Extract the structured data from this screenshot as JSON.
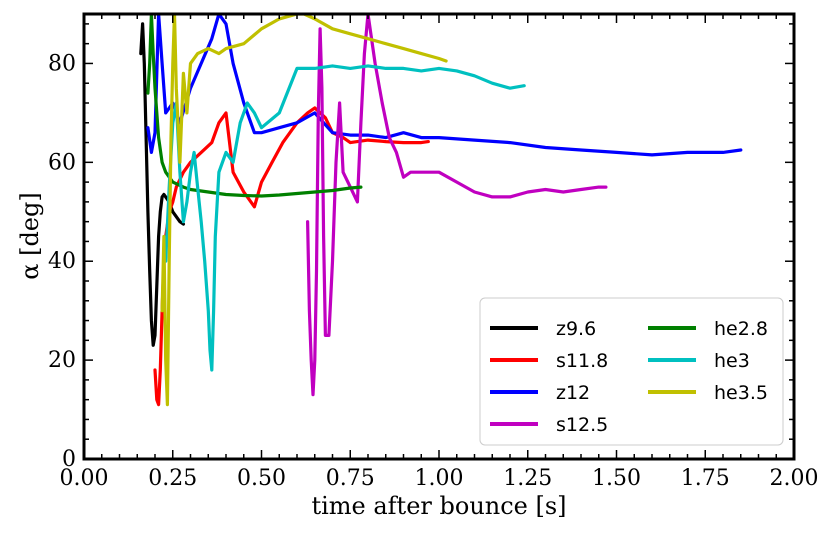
{
  "chart_data": {
    "type": "line",
    "title": "",
    "xlabel": "time after bounce [s]",
    "ylabel": "α [deg]",
    "xlim": [
      0,
      2.0
    ],
    "ylim": [
      0,
      90
    ],
    "x_ticks": [
      0,
      0.25,
      0.5,
      0.75,
      1.0,
      1.25,
      1.5,
      1.75,
      2.0
    ],
    "x_tick_labels": [
      "0.00",
      "0.25",
      "0.50",
      "0.75",
      "1.00",
      "1.25",
      "1.50",
      "1.75",
      "2.00"
    ],
    "y_ticks": [
      0,
      20,
      40,
      60,
      80
    ],
    "y_tick_labels": [
      "0",
      "20",
      "40",
      "60",
      "80"
    ],
    "legend_position": "lower-right",
    "series": [
      {
        "name": "z9.6",
        "color": "#000000",
        "x": [
          0.16,
          0.165,
          0.17,
          0.175,
          0.18,
          0.185,
          0.19,
          0.195,
          0.2,
          0.205,
          0.21,
          0.215,
          0.22,
          0.225,
          0.23,
          0.24,
          0.25,
          0.26,
          0.27,
          0.28
        ],
        "y": [
          82,
          88,
          80,
          65,
          50,
          38,
          28,
          23,
          25,
          35,
          45,
          50,
          53,
          53.5,
          53,
          52,
          50,
          49,
          48,
          47.5
        ]
      },
      {
        "name": "s11.8",
        "color": "#ff0000",
        "x": [
          0.2,
          0.205,
          0.21,
          0.215,
          0.22,
          0.225,
          0.23,
          0.24,
          0.25,
          0.26,
          0.28,
          0.3,
          0.33,
          0.36,
          0.38,
          0.4,
          0.42,
          0.45,
          0.48,
          0.5,
          0.53,
          0.56,
          0.6,
          0.63,
          0.65,
          0.68,
          0.7,
          0.73,
          0.75,
          0.8,
          0.85,
          0.9,
          0.95,
          0.97
        ],
        "y": [
          18,
          12,
          11,
          18,
          30,
          40,
          45,
          50,
          52,
          55,
          58,
          60,
          62,
          64,
          68,
          70,
          58,
          54,
          51,
          56,
          60,
          64,
          68,
          70,
          71,
          69,
          66,
          65,
          64,
          64.5,
          64.2,
          64,
          64,
          64.2
        ]
      },
      {
        "name": "z12",
        "color": "#0000ff",
        "x": [
          0.18,
          0.19,
          0.2,
          0.21,
          0.22,
          0.23,
          0.25,
          0.27,
          0.3,
          0.33,
          0.36,
          0.38,
          0.4,
          0.42,
          0.45,
          0.48,
          0.5,
          0.55,
          0.6,
          0.65,
          0.7,
          0.75,
          0.8,
          0.85,
          0.9,
          0.95,
          1.0,
          1.1,
          1.2,
          1.3,
          1.4,
          1.5,
          1.6,
          1.7,
          1.8,
          1.85
        ],
        "y": [
          67,
          62,
          66,
          90,
          80,
          70,
          72,
          68,
          75,
          80,
          85,
          90,
          88,
          80,
          72,
          66,
          66,
          67,
          68,
          70,
          66,
          65.5,
          65.5,
          65,
          66,
          65,
          65,
          64.5,
          64,
          63,
          62.5,
          62,
          61.5,
          62,
          62,
          62.5
        ]
      },
      {
        "name": "s12.5",
        "color": "#c000c0",
        "x": [
          0.63,
          0.635,
          0.64,
          0.645,
          0.65,
          0.655,
          0.66,
          0.665,
          0.67,
          0.675,
          0.68,
          0.69,
          0.7,
          0.71,
          0.72,
          0.73,
          0.75,
          0.77,
          0.78,
          0.79,
          0.8,
          0.82,
          0.84,
          0.86,
          0.88,
          0.9,
          0.92,
          0.95,
          1.0,
          1.05,
          1.1,
          1.15,
          1.2,
          1.25,
          1.3,
          1.35,
          1.4,
          1.45,
          1.47
        ],
        "y": [
          48,
          30,
          20,
          13,
          20,
          38,
          70,
          87,
          75,
          45,
          25,
          25,
          40,
          60,
          72,
          58,
          55,
          52,
          68,
          82,
          90,
          80,
          72,
          65,
          62,
          57,
          58,
          58,
          58,
          56,
          54,
          53,
          53,
          54,
          54.5,
          54,
          54.5,
          55,
          55
        ]
      },
      {
        "name": "he2.8",
        "color": "#008000",
        "x": [
          0.18,
          0.185,
          0.19,
          0.195,
          0.2,
          0.21,
          0.22,
          0.23,
          0.25,
          0.28,
          0.3,
          0.35,
          0.4,
          0.45,
          0.5,
          0.55,
          0.6,
          0.65,
          0.7,
          0.75,
          0.78
        ],
        "y": [
          74,
          80,
          90,
          82,
          75,
          65,
          60,
          58,
          56,
          55,
          54.5,
          54,
          53.5,
          53.3,
          53.2,
          53.4,
          53.7,
          54,
          54.3,
          54.8,
          55
        ]
      },
      {
        "name": "he3",
        "color": "#00c0c0",
        "x": [
          0.23,
          0.24,
          0.25,
          0.26,
          0.27,
          0.28,
          0.29,
          0.3,
          0.31,
          0.32,
          0.33,
          0.34,
          0.35,
          0.355,
          0.36,
          0.365,
          0.37,
          0.38,
          0.4,
          0.42,
          0.44,
          0.46,
          0.48,
          0.5,
          0.55,
          0.6,
          0.65,
          0.7,
          0.75,
          0.8,
          0.85,
          0.9,
          0.95,
          1.0,
          1.05,
          1.1,
          1.15,
          1.2,
          1.24
        ],
        "y": [
          40,
          55,
          68,
          72,
          58,
          48,
          52,
          58,
          62,
          55,
          48,
          40,
          30,
          22,
          18,
          30,
          45,
          58,
          62,
          60,
          68,
          72,
          70,
          67,
          70,
          79,
          79,
          79.5,
          79,
          79.5,
          79,
          79,
          78.5,
          79,
          78.5,
          77.5,
          76,
          75,
          75.5
        ]
      },
      {
        "name": "he3.5",
        "color": "#c0c000",
        "x": [
          0.22,
          0.225,
          0.23,
          0.235,
          0.24,
          0.245,
          0.25,
          0.255,
          0.26,
          0.27,
          0.28,
          0.29,
          0.3,
          0.32,
          0.35,
          0.38,
          0.4,
          0.45,
          0.5,
          0.55,
          0.6,
          0.62,
          0.65,
          0.7,
          0.75,
          0.8,
          0.85,
          0.9,
          0.95,
          1.0,
          1.02
        ],
        "y": [
          30,
          45,
          20,
          11,
          40,
          65,
          80,
          90,
          75,
          60,
          78,
          70,
          80,
          82,
          83,
          82,
          83,
          84,
          87,
          89,
          90,
          90,
          89,
          87,
          86,
          85,
          84,
          83,
          82,
          81,
          80.5
        ]
      }
    ]
  }
}
